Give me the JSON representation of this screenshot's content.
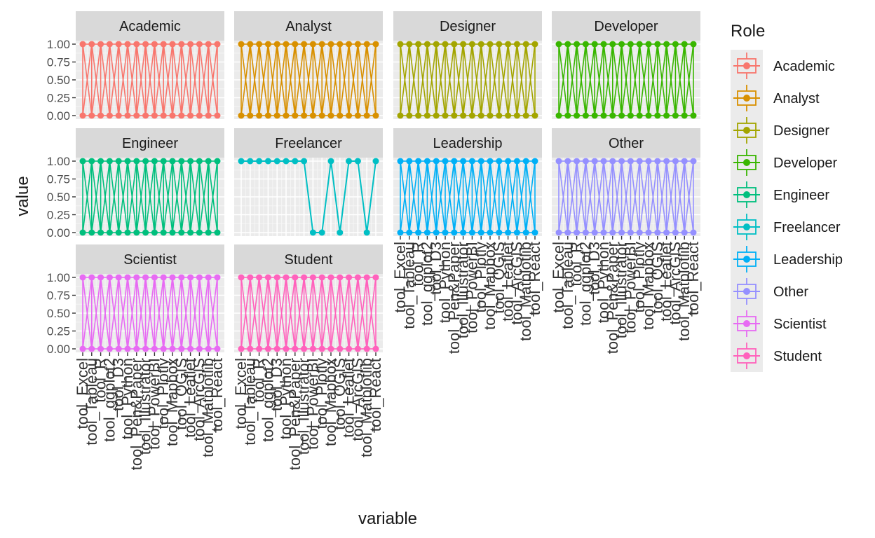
{
  "chart_data": {
    "type": "line",
    "facet_by": "Role",
    "facet_columns": 4,
    "xlabel": "variable",
    "ylabel": "value",
    "x_categories": [
      "tool_Excel",
      "tool_Tableau",
      "tool_R",
      "tool_ggplot2",
      "tool_D3",
      "tool_Python",
      "tool_Pen&Paper",
      "tool_Illustrator",
      "tool_PowerBI",
      "tool_Plotly",
      "tool_Mapbox",
      "tool_QGIS",
      "tool_Leaflet",
      "tool_ArcGIS",
      "tool_Matplotlib",
      "tool_React"
    ],
    "x_ticklabels_display": [
      "tool_Excel",
      "tool_Tableau",
      "tool_R",
      "tool_ggplot2",
      "tool_D3",
      "tool_Python",
      "tool_Pen&Paper",
      "tool_Illustrator",
      "tool_PowerBI",
      "tool_Plotly",
      "tool_Mapbox",
      "tool_QGIS",
      "tool_Leaflet",
      "tool_ArcGIS",
      "tool_Matplotlib",
      "tool_React"
    ],
    "y_ticks": [
      "0.00",
      "0.25",
      "0.50",
      "0.75",
      "1.00"
    ],
    "y_tick_values": [
      0,
      0.25,
      0.5,
      0.75,
      1
    ],
    "ylim": [
      0,
      1
    ],
    "grid": true,
    "legend": {
      "title": "Role",
      "position": "right",
      "entries": [
        "Academic",
        "Analyst",
        "Designer",
        "Developer",
        "Engineer",
        "Freelancer",
        "Leadership",
        "Other",
        "Scientist",
        "Student"
      ]
    },
    "colors": {
      "Academic": "#F8766D",
      "Analyst": "#D89000",
      "Designer": "#A3A500",
      "Developer": "#39B600",
      "Engineer": "#00BF7D",
      "Freelancer": "#00BFC4",
      "Leadership": "#00B0F6",
      "Other": "#9590FF",
      "Scientist": "#E76BF3",
      "Student": "#FF62BC"
    },
    "panels": [
      {
        "name": "Academic",
        "dense": true,
        "bottom_axis": false
      },
      {
        "name": "Analyst",
        "dense": true,
        "bottom_axis": false
      },
      {
        "name": "Designer",
        "dense": true,
        "bottom_axis": false
      },
      {
        "name": "Developer",
        "dense": true,
        "bottom_axis": false
      },
      {
        "name": "Engineer",
        "dense": true,
        "bottom_axis": false
      },
      {
        "name": "Freelancer",
        "dense": false,
        "bottom_axis": false,
        "values": [
          1,
          1,
          1,
          1,
          1,
          1,
          1,
          1,
          0,
          0,
          1,
          0,
          1,
          1,
          0,
          1
        ]
      },
      {
        "name": "Leadership",
        "dense": true,
        "bottom_axis": true
      },
      {
        "name": "Other",
        "dense": true,
        "bottom_axis": true
      },
      {
        "name": "Scientist",
        "dense": true,
        "bottom_axis": true
      },
      {
        "name": "Student",
        "dense": true,
        "bottom_axis": true
      }
    ]
  }
}
